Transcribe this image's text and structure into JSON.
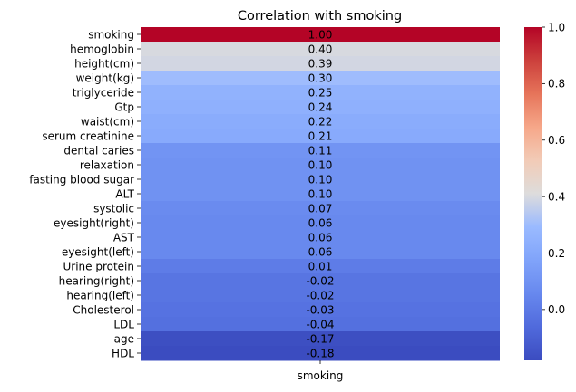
{
  "chart_data": {
    "type": "heatmap",
    "title": "Correlation with smoking",
    "columns": [
      "smoking"
    ],
    "rows": [
      "smoking",
      "hemoglobin",
      "height(cm)",
      "weight(kg)",
      "triglyceride",
      "Gtp",
      "waist(cm)",
      "serum creatinine",
      "dental caries",
      "relaxation",
      "fasting blood sugar",
      "ALT",
      "systolic",
      "eyesight(right)",
      "AST",
      "eyesight(left)",
      "Urine protein",
      "hearing(right)",
      "hearing(left)",
      "Cholesterol",
      "LDL",
      "age",
      "HDL"
    ],
    "values": [
      1.0,
      0.4,
      0.39,
      0.3,
      0.25,
      0.24,
      0.22,
      0.21,
      0.11,
      0.1,
      0.1,
      0.1,
      0.07,
      0.06,
      0.06,
      0.06,
      0.01,
      -0.02,
      -0.02,
      -0.03,
      -0.04,
      -0.17,
      -0.18
    ],
    "labels": [
      "1.00",
      "0.40",
      "0.39",
      "0.30",
      "0.25",
      "0.24",
      "0.22",
      "0.21",
      "0.11",
      "0.10",
      "0.10",
      "0.10",
      "0.07",
      "0.06",
      "0.06",
      "0.06",
      "0.01",
      "-0.02",
      "-0.02",
      "-0.03",
      "-0.04",
      "-0.17",
      "-0.18"
    ],
    "colormap": "coolwarm",
    "vmin": -0.18,
    "vmax": 1.0,
    "colorbar": {
      "ticks": [
        0.0,
        0.2,
        0.4,
        0.6,
        0.8,
        1.0
      ],
      "tick_labels": [
        "0.0",
        "0.2",
        "0.4",
        "0.6",
        "0.8",
        "1.0"
      ]
    },
    "annotated": true,
    "grid": false
  }
}
